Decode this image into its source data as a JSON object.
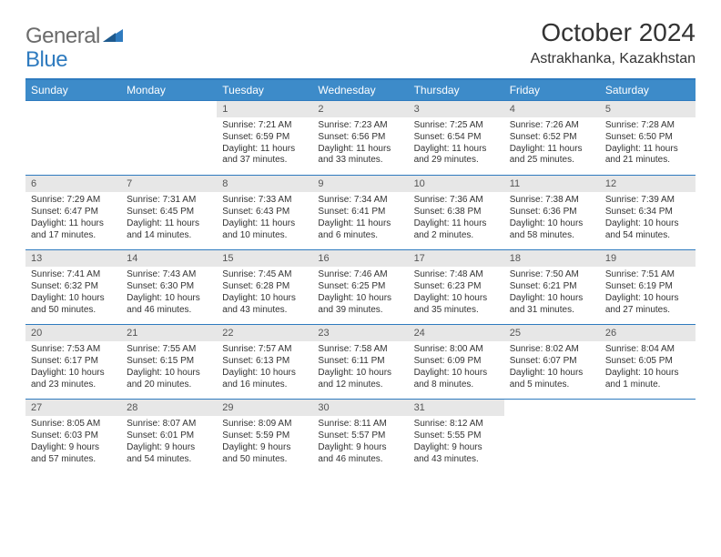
{
  "logo": {
    "part1": "General",
    "part2": "Blue"
  },
  "title": "October 2024",
  "location": "Astrakhanka, Kazakhstan",
  "colors": {
    "header_bg": "#3d8bc9",
    "border": "#2f7bbf",
    "daynum_bg": "#e7e7e7",
    "text": "#333333",
    "logo_gray": "#6b6b6b",
    "logo_blue": "#2f7bbf"
  },
  "day_names": [
    "Sunday",
    "Monday",
    "Tuesday",
    "Wednesday",
    "Thursday",
    "Friday",
    "Saturday"
  ],
  "weeks": [
    [
      null,
      null,
      {
        "n": "1",
        "sr": "Sunrise: 7:21 AM",
        "ss": "Sunset: 6:59 PM",
        "d1": "Daylight: 11 hours",
        "d2": "and 37 minutes."
      },
      {
        "n": "2",
        "sr": "Sunrise: 7:23 AM",
        "ss": "Sunset: 6:56 PM",
        "d1": "Daylight: 11 hours",
        "d2": "and 33 minutes."
      },
      {
        "n": "3",
        "sr": "Sunrise: 7:25 AM",
        "ss": "Sunset: 6:54 PM",
        "d1": "Daylight: 11 hours",
        "d2": "and 29 minutes."
      },
      {
        "n": "4",
        "sr": "Sunrise: 7:26 AM",
        "ss": "Sunset: 6:52 PM",
        "d1": "Daylight: 11 hours",
        "d2": "and 25 minutes."
      },
      {
        "n": "5",
        "sr": "Sunrise: 7:28 AM",
        "ss": "Sunset: 6:50 PM",
        "d1": "Daylight: 11 hours",
        "d2": "and 21 minutes."
      }
    ],
    [
      {
        "n": "6",
        "sr": "Sunrise: 7:29 AM",
        "ss": "Sunset: 6:47 PM",
        "d1": "Daylight: 11 hours",
        "d2": "and 17 minutes."
      },
      {
        "n": "7",
        "sr": "Sunrise: 7:31 AM",
        "ss": "Sunset: 6:45 PM",
        "d1": "Daylight: 11 hours",
        "d2": "and 14 minutes."
      },
      {
        "n": "8",
        "sr": "Sunrise: 7:33 AM",
        "ss": "Sunset: 6:43 PM",
        "d1": "Daylight: 11 hours",
        "d2": "and 10 minutes."
      },
      {
        "n": "9",
        "sr": "Sunrise: 7:34 AM",
        "ss": "Sunset: 6:41 PM",
        "d1": "Daylight: 11 hours",
        "d2": "and 6 minutes."
      },
      {
        "n": "10",
        "sr": "Sunrise: 7:36 AM",
        "ss": "Sunset: 6:38 PM",
        "d1": "Daylight: 11 hours",
        "d2": "and 2 minutes."
      },
      {
        "n": "11",
        "sr": "Sunrise: 7:38 AM",
        "ss": "Sunset: 6:36 PM",
        "d1": "Daylight: 10 hours",
        "d2": "and 58 minutes."
      },
      {
        "n": "12",
        "sr": "Sunrise: 7:39 AM",
        "ss": "Sunset: 6:34 PM",
        "d1": "Daylight: 10 hours",
        "d2": "and 54 minutes."
      }
    ],
    [
      {
        "n": "13",
        "sr": "Sunrise: 7:41 AM",
        "ss": "Sunset: 6:32 PM",
        "d1": "Daylight: 10 hours",
        "d2": "and 50 minutes."
      },
      {
        "n": "14",
        "sr": "Sunrise: 7:43 AM",
        "ss": "Sunset: 6:30 PM",
        "d1": "Daylight: 10 hours",
        "d2": "and 46 minutes."
      },
      {
        "n": "15",
        "sr": "Sunrise: 7:45 AM",
        "ss": "Sunset: 6:28 PM",
        "d1": "Daylight: 10 hours",
        "d2": "and 43 minutes."
      },
      {
        "n": "16",
        "sr": "Sunrise: 7:46 AM",
        "ss": "Sunset: 6:25 PM",
        "d1": "Daylight: 10 hours",
        "d2": "and 39 minutes."
      },
      {
        "n": "17",
        "sr": "Sunrise: 7:48 AM",
        "ss": "Sunset: 6:23 PM",
        "d1": "Daylight: 10 hours",
        "d2": "and 35 minutes."
      },
      {
        "n": "18",
        "sr": "Sunrise: 7:50 AM",
        "ss": "Sunset: 6:21 PM",
        "d1": "Daylight: 10 hours",
        "d2": "and 31 minutes."
      },
      {
        "n": "19",
        "sr": "Sunrise: 7:51 AM",
        "ss": "Sunset: 6:19 PM",
        "d1": "Daylight: 10 hours",
        "d2": "and 27 minutes."
      }
    ],
    [
      {
        "n": "20",
        "sr": "Sunrise: 7:53 AM",
        "ss": "Sunset: 6:17 PM",
        "d1": "Daylight: 10 hours",
        "d2": "and 23 minutes."
      },
      {
        "n": "21",
        "sr": "Sunrise: 7:55 AM",
        "ss": "Sunset: 6:15 PM",
        "d1": "Daylight: 10 hours",
        "d2": "and 20 minutes."
      },
      {
        "n": "22",
        "sr": "Sunrise: 7:57 AM",
        "ss": "Sunset: 6:13 PM",
        "d1": "Daylight: 10 hours",
        "d2": "and 16 minutes."
      },
      {
        "n": "23",
        "sr": "Sunrise: 7:58 AM",
        "ss": "Sunset: 6:11 PM",
        "d1": "Daylight: 10 hours",
        "d2": "and 12 minutes."
      },
      {
        "n": "24",
        "sr": "Sunrise: 8:00 AM",
        "ss": "Sunset: 6:09 PM",
        "d1": "Daylight: 10 hours",
        "d2": "and 8 minutes."
      },
      {
        "n": "25",
        "sr": "Sunrise: 8:02 AM",
        "ss": "Sunset: 6:07 PM",
        "d1": "Daylight: 10 hours",
        "d2": "and 5 minutes."
      },
      {
        "n": "26",
        "sr": "Sunrise: 8:04 AM",
        "ss": "Sunset: 6:05 PM",
        "d1": "Daylight: 10 hours",
        "d2": "and 1 minute."
      }
    ],
    [
      {
        "n": "27",
        "sr": "Sunrise: 8:05 AM",
        "ss": "Sunset: 6:03 PM",
        "d1": "Daylight: 9 hours",
        "d2": "and 57 minutes."
      },
      {
        "n": "28",
        "sr": "Sunrise: 8:07 AM",
        "ss": "Sunset: 6:01 PM",
        "d1": "Daylight: 9 hours",
        "d2": "and 54 minutes."
      },
      {
        "n": "29",
        "sr": "Sunrise: 8:09 AM",
        "ss": "Sunset: 5:59 PM",
        "d1": "Daylight: 9 hours",
        "d2": "and 50 minutes."
      },
      {
        "n": "30",
        "sr": "Sunrise: 8:11 AM",
        "ss": "Sunset: 5:57 PM",
        "d1": "Daylight: 9 hours",
        "d2": "and 46 minutes."
      },
      {
        "n": "31",
        "sr": "Sunrise: 8:12 AM",
        "ss": "Sunset: 5:55 PM",
        "d1": "Daylight: 9 hours",
        "d2": "and 43 minutes."
      },
      null,
      null
    ]
  ]
}
